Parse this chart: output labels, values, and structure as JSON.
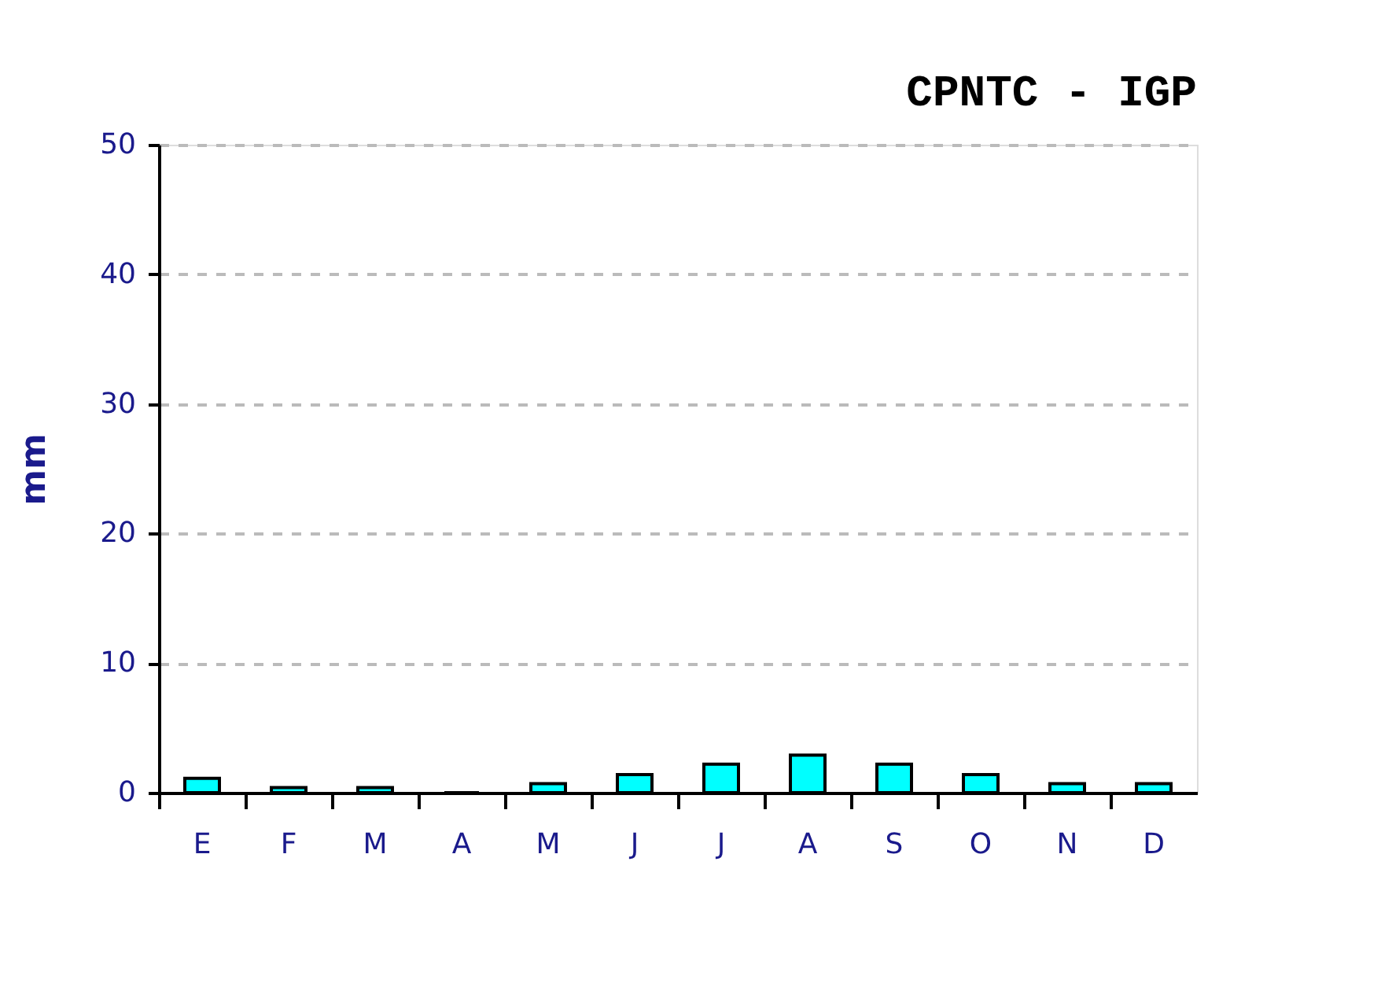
{
  "chart_data": {
    "type": "bar",
    "title": "CPNTC - IGP",
    "ylabel": "mm",
    "categories": [
      "E",
      "F",
      "M",
      "A",
      "M",
      "J",
      "J",
      "A",
      "S",
      "O",
      "N",
      "D"
    ],
    "values": [
      1.1,
      0.4,
      0.4,
      0,
      0.7,
      1.4,
      2.2,
      2.9,
      2.2,
      1.4,
      0.7,
      0.7
    ],
    "color": "#00ffff",
    "ylim": [
      0,
      50
    ],
    "yticks": [
      0,
      10,
      20,
      30,
      40,
      50
    ],
    "grid": "y"
  }
}
